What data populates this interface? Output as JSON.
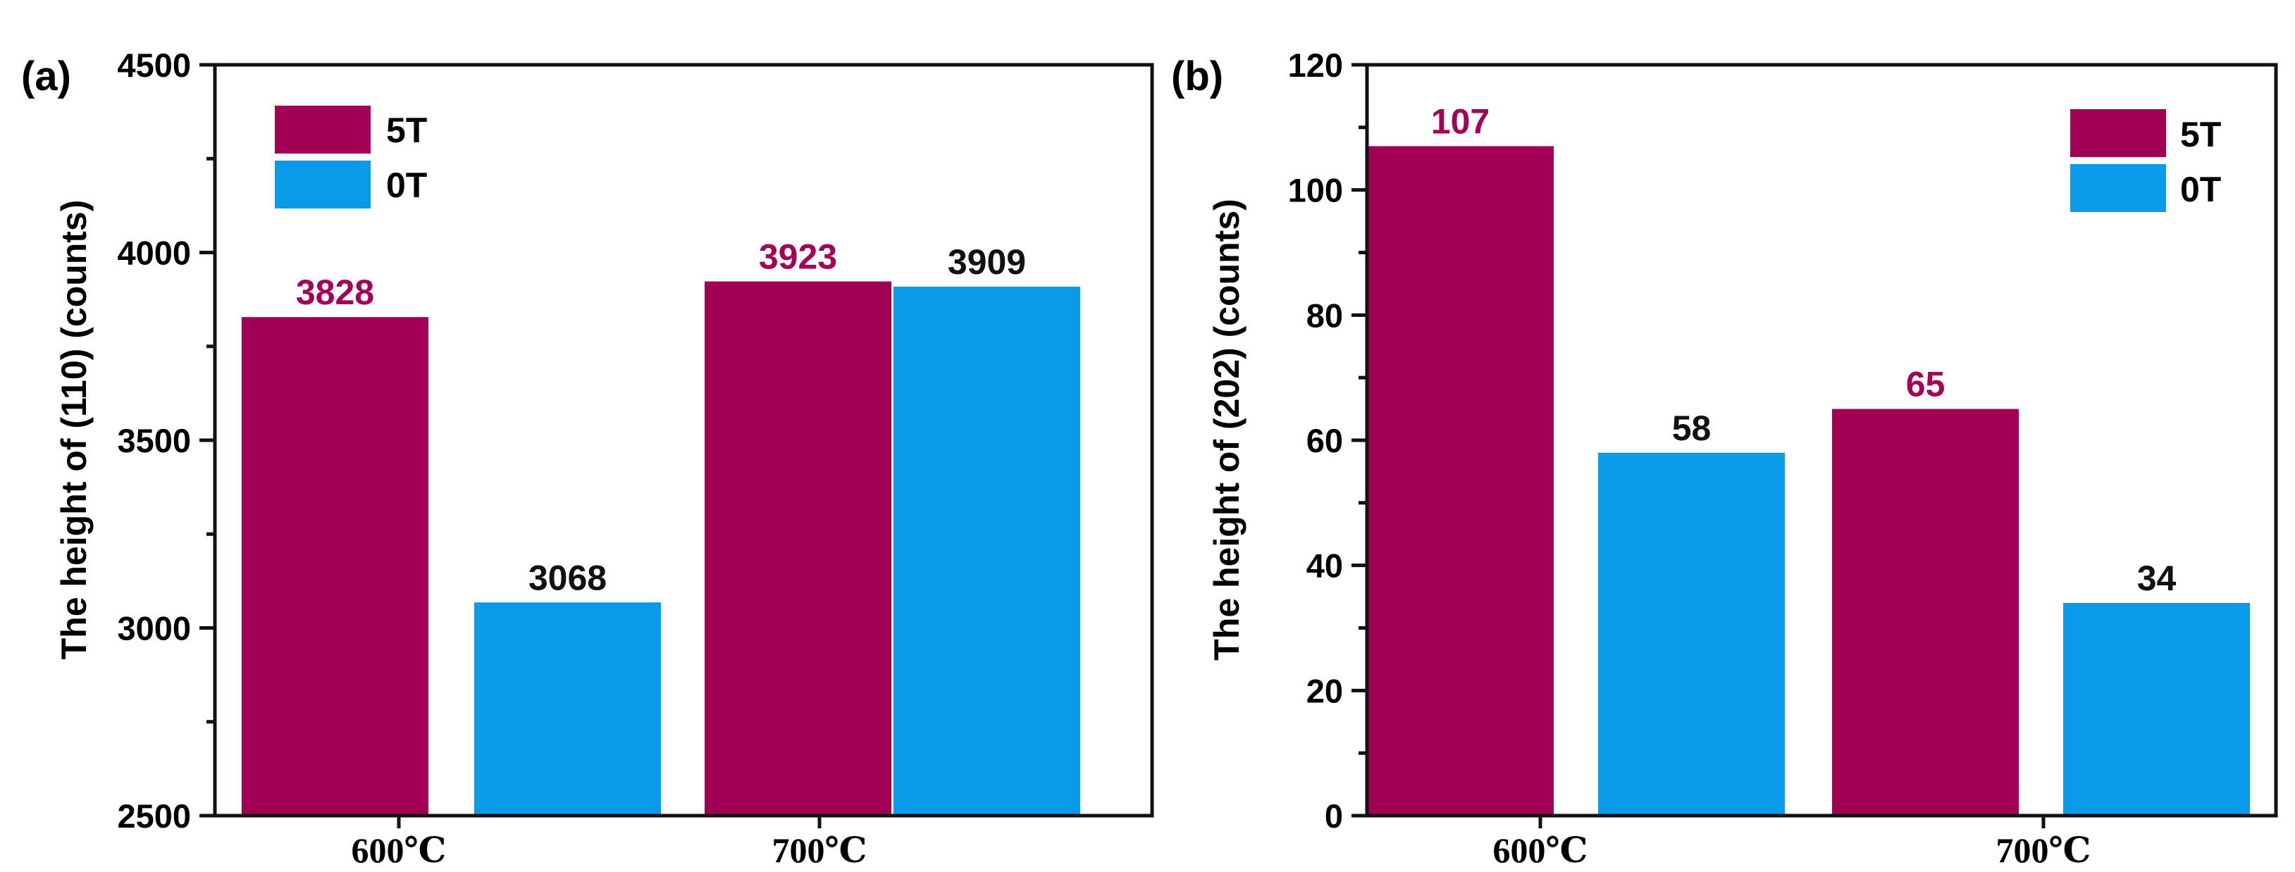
{
  "colors": {
    "series_5T": "#a10055",
    "series_0T": "#0a9aea",
    "label_5T": "#a3005a",
    "label_0T": "#111111",
    "axis": "#111111"
  },
  "chart_data": [
    {
      "panel_label": "(a)",
      "type": "bar",
      "categories": [
        "600℃",
        "700℃"
      ],
      "series": [
        {
          "name": "5T",
          "values": [
            3828,
            3923
          ]
        },
        {
          "name": "0T",
          "values": [
            3068,
            3909
          ]
        }
      ],
      "data_labels": [
        [
          "3828",
          "3923"
        ],
        [
          "3068",
          "3909"
        ]
      ],
      "title": "",
      "xlabel": "",
      "ylabel": "The height of (110) (counts)",
      "ylim": [
        2500,
        4500
      ],
      "yticks": [
        "2500",
        "3000",
        "3500",
        "4000",
        "4500"
      ],
      "grid": false,
      "legend_position": "top-left"
    },
    {
      "panel_label": "(b)",
      "type": "bar",
      "categories": [
        "600℃",
        "700℃"
      ],
      "series": [
        {
          "name": "5T",
          "values": [
            107,
            65
          ]
        },
        {
          "name": "0T",
          "values": [
            58,
            34
          ]
        }
      ],
      "data_labels": [
        [
          "107",
          "65"
        ],
        [
          "58",
          "34"
        ]
      ],
      "title": "",
      "xlabel": "",
      "ylabel": "The height of (202) (counts)",
      "ylim": [
        0,
        120
      ],
      "yticks": [
        "0",
        "20",
        "40",
        "60",
        "80",
        "100",
        "120"
      ],
      "grid": false,
      "legend_position": "top-right"
    }
  ]
}
